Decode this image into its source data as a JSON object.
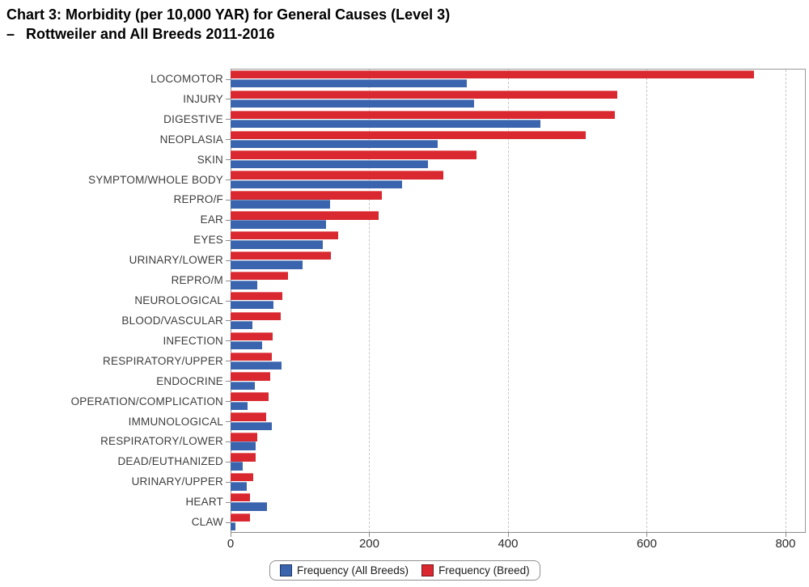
{
  "title": {
    "line1": "Chart 3: Morbidity (per 10,000 YAR) for General Causes (Level 3)",
    "line2_dash": "–",
    "line2": "Rottweiler and All Breeds 2011-2016"
  },
  "colors": {
    "all_breeds": "#3a64ad",
    "breed": "#d9282f",
    "axis": "#8c8c8c",
    "grid": "#c6c6c6",
    "category_label": "#3d3d3d",
    "tick_label": "#2b2b2b",
    "legend_border": "#8f8f8f"
  },
  "chart_data": {
    "type": "bar",
    "orientation": "horizontal",
    "title": "Chart 3: Morbidity (per 10,000 YAR) for General Causes (Level 3) – Rottweiler and All Breeds 2011-2016",
    "xlabel": "",
    "ylabel": "",
    "grid": "vertical-dashed",
    "legend_position": "bottom",
    "x_ticks": [
      0,
      200,
      400,
      600,
      800
    ],
    "xlim": [
      0,
      828
    ],
    "categories": [
      "LOCOMOTOR",
      "INJURY",
      "DIGESTIVE",
      "NEOPLASIA",
      "SKIN",
      "SYMPTOM/WHOLE BODY",
      "REPRO/F",
      "EAR",
      "EYES",
      "URINARY/LOWER",
      "REPRO/M",
      "NEUROLOGICAL",
      "BLOOD/VASCULAR",
      "INFECTION",
      "RESPIRATORY/UPPER",
      "ENDOCRINE",
      "OPERATION/COMPLICATION",
      "IMMUNOLOGICAL",
      "RESPIRATORY/LOWER",
      "DEAD/EUTHANIZED",
      "URINARY/UPPER",
      "HEART",
      "CLAW"
    ],
    "series": [
      {
        "name": "Frequency (All Breeds)",
        "color_key": "all_breeds",
        "values": [
          341,
          351,
          447,
          299,
          284,
          247,
          144,
          138,
          133,
          104,
          38,
          62,
          32,
          46,
          73,
          35,
          24,
          60,
          36,
          18,
          23,
          53,
          7
        ]
      },
      {
        "name": "Frequency (Breed)",
        "color_key": "breed",
        "values": [
          755,
          557,
          554,
          512,
          354,
          307,
          218,
          213,
          155,
          145,
          83,
          75,
          72,
          61,
          59,
          57,
          55,
          51,
          39,
          36,
          33,
          28,
          28
        ]
      }
    ]
  },
  "legend": {
    "items": [
      {
        "label": "Frequency (All Breeds)",
        "color_key": "all_breeds"
      },
      {
        "label": "Frequency (Breed)",
        "color_key": "breed"
      }
    ]
  }
}
